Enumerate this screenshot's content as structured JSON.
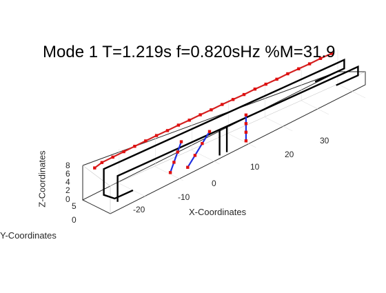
{
  "chart_data": {
    "type": "line",
    "projection": "3d",
    "title": "Mode 1   T=1.219s  f=0.820sHz  %M=31.9",
    "xlabel": "X-Coordinates",
    "ylabel": "Y-Coordinates",
    "zlabel": "Z-Coordinates",
    "xlim": [
      -30,
      40
    ],
    "ylim": [
      0,
      10
    ],
    "zlim": [
      0,
      8
    ],
    "x_ticks": [
      "-20",
      "-10",
      "0",
      "10",
      "20",
      "30"
    ],
    "y_ticks": [
      "0",
      "5"
    ],
    "z_ticks": [
      "0",
      "2",
      "4",
      "6",
      "8"
    ],
    "grid": true,
    "series": [
      {
        "role": "undeformed-front-deck",
        "color": "#000000",
        "points": [
          [
            -20,
            5,
            0
          ],
          [
            -25,
            5,
            0
          ],
          [
            -28,
            5,
            2
          ],
          [
            -28,
            5,
            6
          ],
          [
            -28,
            5,
            8
          ],
          [
            -20,
            5,
            8
          ],
          [
            -10,
            5,
            8
          ],
          [
            0,
            5,
            8
          ],
          [
            10,
            5,
            8
          ],
          [
            20,
            5,
            8
          ],
          [
            30,
            5,
            8
          ],
          [
            35,
            5,
            8
          ],
          [
            38,
            5,
            8
          ],
          [
            38,
            5,
            6
          ],
          [
            35,
            5,
            6
          ],
          [
            30,
            5,
            6
          ]
        ]
      },
      {
        "role": "undeformed-rear-deck",
        "color": "#000000",
        "points": [
          [
            -28,
            0,
            2
          ],
          [
            -28,
            0,
            8
          ],
          [
            -20,
            0,
            8
          ],
          [
            -10,
            0,
            8
          ],
          [
            0,
            0,
            8
          ],
          [
            10,
            0,
            8
          ],
          [
            20,
            0,
            8
          ],
          [
            30,
            0,
            8
          ],
          [
            38,
            0,
            8
          ],
          [
            38,
            0,
            6
          ],
          [
            32,
            0,
            6
          ]
        ]
      },
      {
        "role": "undeformed-pier-left",
        "color": "#000000",
        "points": [
          [
            0,
            0,
            8
          ],
          [
            0,
            0,
            5
          ],
          [
            0,
            0,
            2
          ]
        ]
      },
      {
        "role": "undeformed-pier-right",
        "color": "#000000",
        "points": [
          [
            2,
            0,
            8
          ],
          [
            2,
            0,
            5
          ],
          [
            2,
            0,
            2
          ]
        ]
      },
      {
        "role": "deformed-deck",
        "color": "#d42020",
        "marker": "square",
        "points": [
          [
            -29,
            7,
            8
          ],
          [
            -27,
            7,
            8.5
          ],
          [
            -24,
            7,
            8.6
          ],
          [
            -21,
            7,
            8.7
          ],
          [
            -18,
            7,
            8.8
          ],
          [
            -15,
            7,
            8.9
          ],
          [
            -12,
            7,
            9
          ],
          [
            -9,
            7,
            9
          ],
          [
            -6,
            7,
            9.1
          ],
          [
            -3,
            7,
            9.1
          ],
          [
            0,
            7,
            9.2
          ],
          [
            3,
            7,
            9.2
          ],
          [
            6,
            7,
            9.3
          ],
          [
            9,
            7,
            9.3
          ],
          [
            12,
            7,
            9.3
          ],
          [
            15,
            7,
            9.4
          ],
          [
            18,
            7,
            9.4
          ],
          [
            21,
            7,
            9.4
          ],
          [
            24,
            7,
            9.5
          ],
          [
            27,
            7,
            9.5
          ],
          [
            30,
            7,
            9.5
          ],
          [
            33,
            7,
            9.6
          ],
          [
            36,
            7,
            9.6
          ]
        ]
      },
      {
        "role": "deformed-diagonal-pier-a",
        "color": "#2030e0",
        "marker": "square",
        "points": [
          [
            -12,
            2,
            2
          ],
          [
            -11,
            2,
            4
          ],
          [
            -10,
            2,
            6
          ],
          [
            -9,
            2,
            8
          ]
        ]
      },
      {
        "role": "deformed-diagonal-pier-b",
        "color": "#2030e0",
        "marker": "square",
        "points": [
          [
            -8,
            1,
            2
          ],
          [
            -6,
            1,
            4
          ],
          [
            -4,
            1,
            6
          ],
          [
            -2,
            1,
            8
          ]
        ]
      },
      {
        "role": "deformed-vertical-piers",
        "color": "#2030e0",
        "marker": "square",
        "points": [
          [
            8,
            1,
            2
          ],
          [
            8,
            1,
            4
          ],
          [
            8,
            1,
            6
          ],
          [
            8,
            1,
            8
          ]
        ]
      }
    ]
  }
}
